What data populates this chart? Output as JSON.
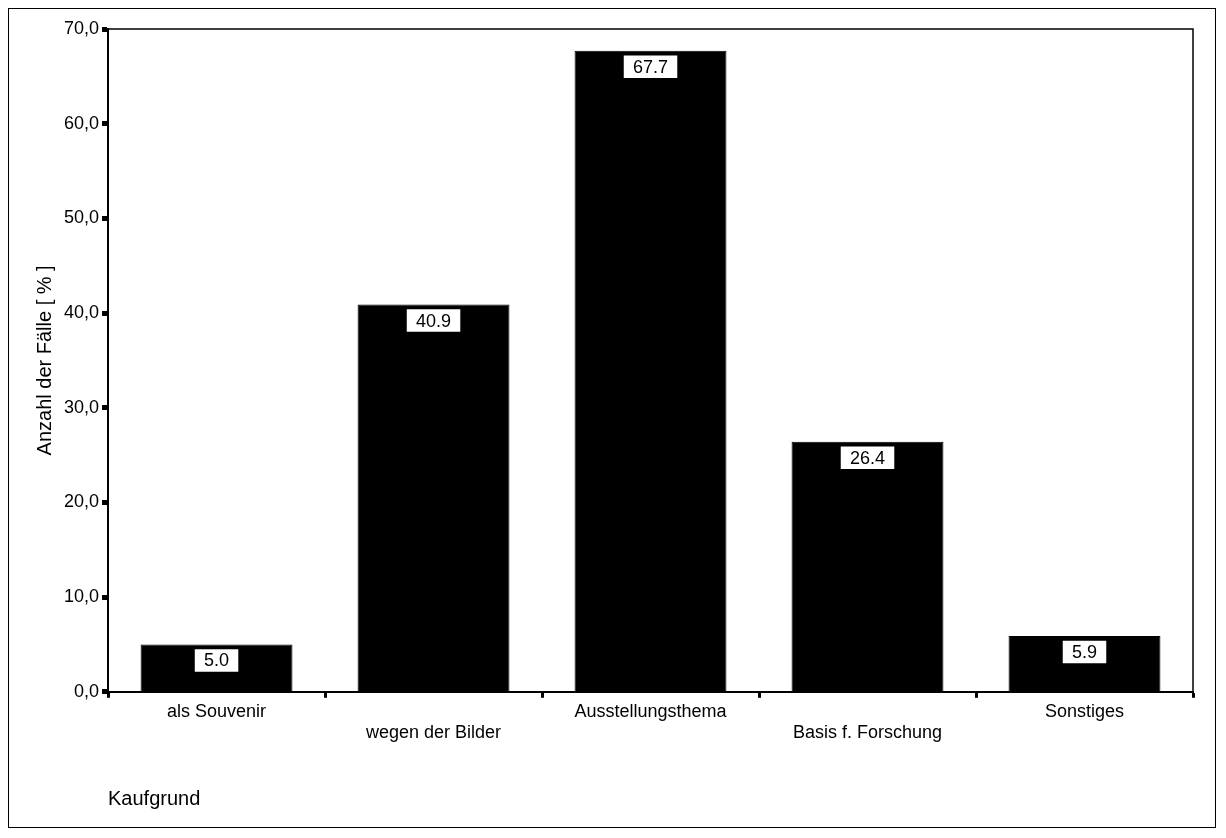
{
  "chart_data": {
    "type": "bar",
    "xlabel": "Kaufgrund",
    "ylabel": "Anzahl der Fälle [ % ]",
    "categories": [
      "als Souvenir",
      "wegen der Bilder",
      "Ausstellungsthema",
      "Basis f. Forschung",
      "Sonstiges"
    ],
    "values": [
      5.0,
      40.9,
      67.7,
      26.4,
      5.9
    ],
    "color": "#000000",
    "ylim": [
      0,
      70
    ],
    "yticks": [
      {
        "value": 0,
        "label": "0,0"
      },
      {
        "value": 10,
        "label": "10,0"
      },
      {
        "value": 20,
        "label": "20,0"
      },
      {
        "value": 30,
        "label": "30,0"
      },
      {
        "value": 40,
        "label": "40,0"
      },
      {
        "value": 50,
        "label": "50,0"
      },
      {
        "value": 60,
        "label": "60,0"
      },
      {
        "value": 70,
        "label": "70,0"
      }
    ],
    "value_labels": [
      "5.0",
      "40.9",
      "67.7",
      "26.4",
      "5.9"
    ],
    "grid": false,
    "legend": false
  }
}
